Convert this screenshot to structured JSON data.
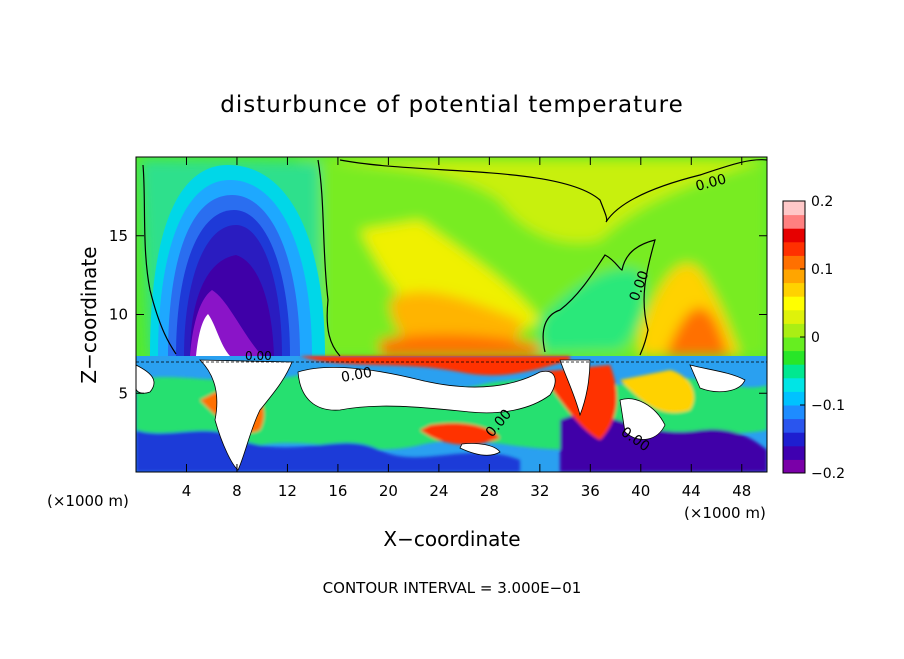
{
  "chart_data": {
    "type": "heatmap",
    "title": "disturbunce of potential temperature",
    "xlabel": "X−coordinate",
    "ylabel": "Z−coordinate",
    "x_unit_left": "(×1000 m)",
    "x_unit_right": "(×1000 m)",
    "footer": "CONTOUR INTERVAL = 3.000E−01",
    "xlim": [
      0,
      50
    ],
    "ylim": [
      0,
      20
    ],
    "x_ticks": [
      4,
      8,
      12,
      16,
      20,
      24,
      28,
      32,
      36,
      40,
      44,
      48
    ],
    "x_tick_labels": [
      "4",
      "8",
      "12",
      "16",
      "20",
      "24",
      "28",
      "32",
      "36",
      "40",
      "44",
      "48"
    ],
    "y_ticks": [
      5,
      10,
      15
    ],
    "y_tick_labels": [
      "5",
      "10",
      "15"
    ],
    "colorbar": {
      "range": [
        -0.2,
        0.2
      ],
      "tick_values": [
        0.2,
        0.1,
        0,
        -0.1,
        -0.2
      ],
      "tick_labels": [
        "0.2",
        "0.1",
        "0",
        "−0.1",
        "−0.2"
      ],
      "colors": [
        "#7a00a8",
        "#3f00b0",
        "#1e1ed0",
        "#2a55ee",
        "#1e8cff",
        "#00c2ff",
        "#00e5e5",
        "#00e890",
        "#28e628",
        "#66ee20",
        "#aaee14",
        "#dff20a",
        "#ffff00",
        "#ffd200",
        "#ffa500",
        "#ff7000",
        "#ff3000",
        "#e60000",
        "#ff8080",
        "#ffc8c8"
      ]
    },
    "contour_labels": [
      "0.00",
      "0.00",
      "0.00",
      "0.00",
      "0.00",
      "0.00"
    ]
  }
}
